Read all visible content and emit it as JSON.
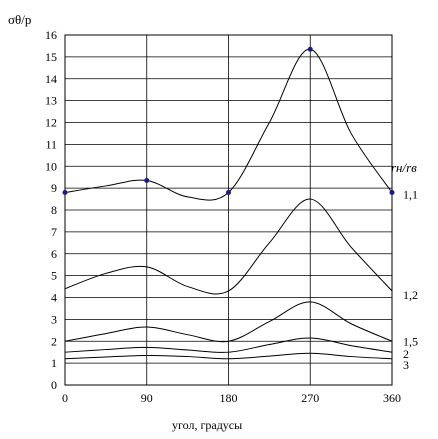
{
  "chart_data": {
    "type": "line",
    "title": "",
    "xlabel": "угол, градусы",
    "ylabel": "σθ/p",
    "legend_title": "rн/rв",
    "xlim": [
      0,
      360
    ],
    "ylim": [
      0,
      16
    ],
    "xticks": [
      "0",
      "90",
      "180",
      "270",
      "360"
    ],
    "yticks": [
      "0",
      "1",
      "2",
      "3",
      "4",
      "5",
      "6",
      "7",
      "8",
      "9",
      "10",
      "11",
      "12",
      "13",
      "14",
      "15",
      "16"
    ],
    "grid": true,
    "x": [
      0,
      45,
      90,
      135,
      180,
      225,
      270,
      315,
      360
    ],
    "series": [
      {
        "name": "1,1",
        "values": [
          8.8,
          9.1,
          9.35,
          8.6,
          8.8,
          12.0,
          15.35,
          11.5,
          8.8
        ],
        "markers": [
          0,
          90,
          180,
          270,
          360
        ]
      },
      {
        "name": "1,2",
        "values": [
          4.4,
          5.1,
          5.4,
          4.5,
          4.3,
          6.5,
          8.5,
          6.3,
          4.3
        ]
      },
      {
        "name": "1,5",
        "values": [
          2.0,
          2.35,
          2.65,
          2.3,
          2.0,
          2.9,
          3.8,
          2.8,
          2.0
        ]
      },
      {
        "name": "2",
        "values": [
          1.5,
          1.62,
          1.72,
          1.6,
          1.5,
          1.85,
          2.15,
          1.8,
          1.5
        ]
      },
      {
        "name": "3",
        "values": [
          1.2,
          1.28,
          1.35,
          1.3,
          1.2,
          1.32,
          1.45,
          1.3,
          1.2
        ]
      }
    ]
  }
}
